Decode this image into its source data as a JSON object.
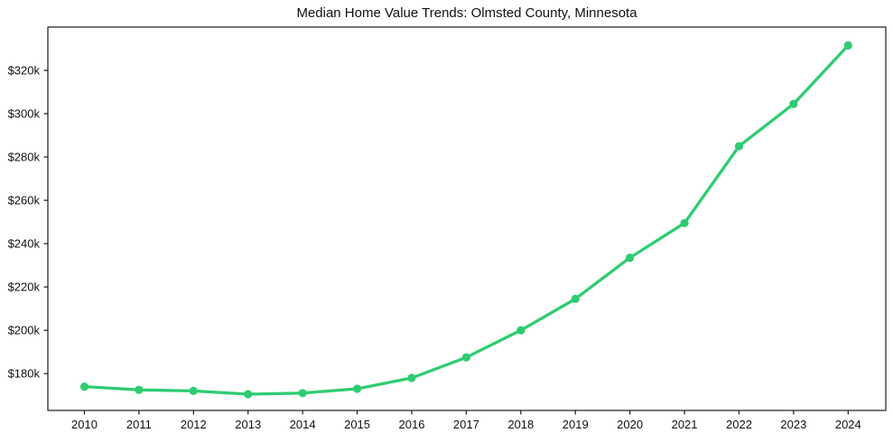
{
  "chart_data": {
    "type": "line",
    "title": "Median Home Value Trends: Olmsted County, Minnesota",
    "xlabel": "",
    "ylabel": "",
    "categories": [
      "2010",
      "2011",
      "2012",
      "2013",
      "2014",
      "2015",
      "2016",
      "2017",
      "2018",
      "2019",
      "2020",
      "2021",
      "2022",
      "2023",
      "2024"
    ],
    "x": [
      2010,
      2011,
      2012,
      2013,
      2014,
      2015,
      2016,
      2017,
      2018,
      2019,
      2020,
      2021,
      2022,
      2023,
      2024
    ],
    "series": [
      {
        "name": "Median Home Value",
        "values": [
          174000,
          172500,
          172000,
          170500,
          171000,
          173000,
          178000,
          187500,
          200000,
          214500,
          233500,
          249500,
          285000,
          304500,
          331500
        ]
      }
    ],
    "y_ticks": [
      180000,
      200000,
      220000,
      240000,
      260000,
      280000,
      300000,
      320000
    ],
    "y_tick_labels": [
      "$180k",
      "$200k",
      "$220k",
      "$240k",
      "$260k",
      "$280k",
      "$300k",
      "$320k"
    ],
    "xlim": [
      2009.33,
      2024.69
    ],
    "ylim": [
      163000,
      340000
    ],
    "grid": false,
    "legend": "none",
    "line_color": "#2ecc71",
    "marker": "circle",
    "spine_color": "#1a1a1a",
    "text_color": "#111111",
    "background_color": "#ffffff"
  }
}
